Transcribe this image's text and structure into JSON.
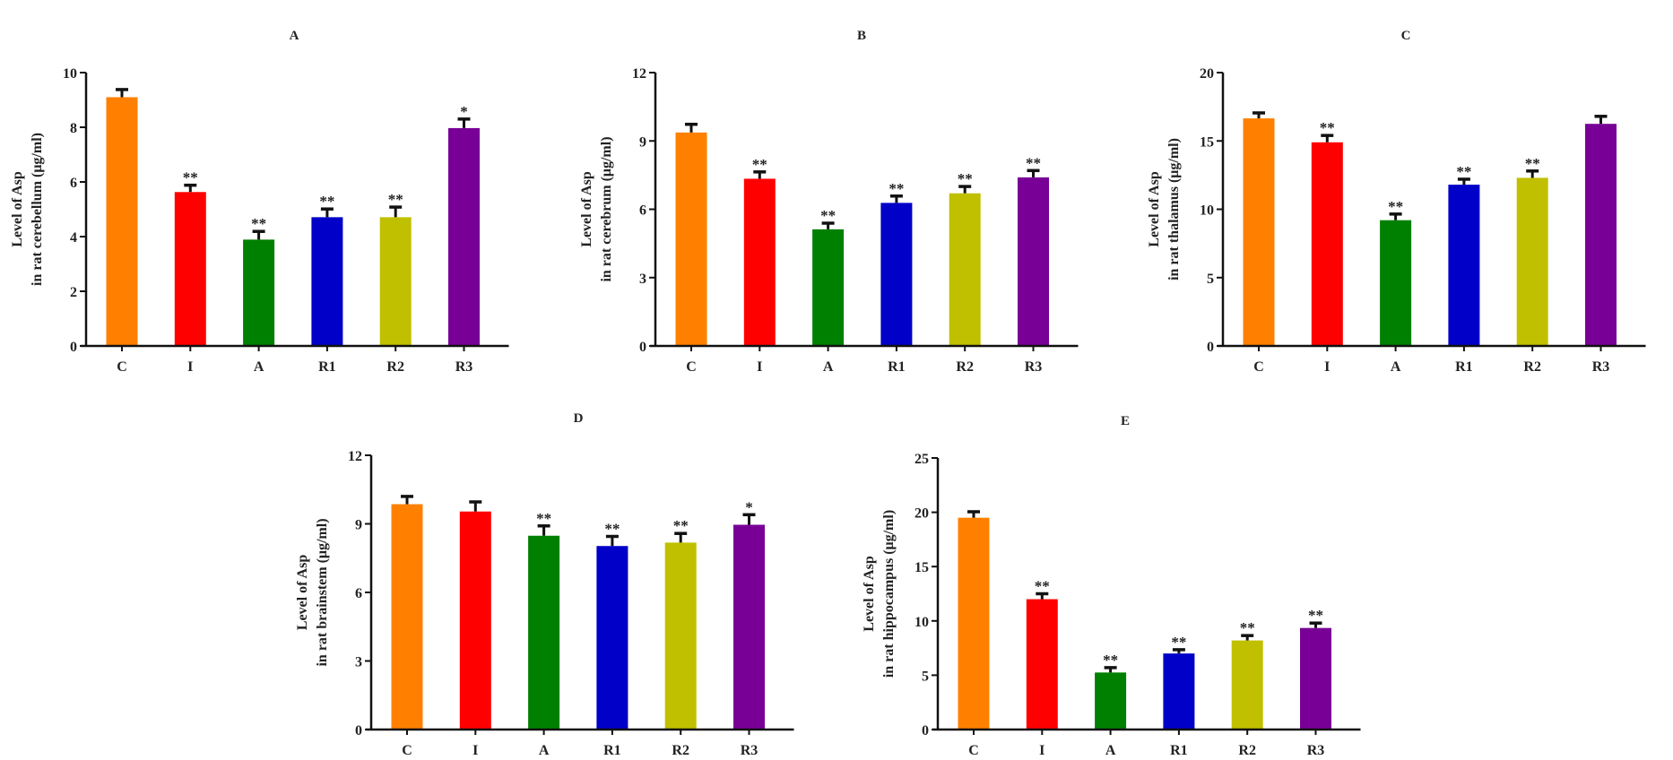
{
  "chart_data": [
    {
      "type": "bar",
      "title": "A",
      "ylabel": [
        "Level of Asp",
        "in rat cerebellum (μg/ml)"
      ],
      "categories": [
        "C",
        "I",
        "A",
        "R1",
        "R2",
        "R3"
      ],
      "values": [
        9.1,
        5.63,
        3.89,
        4.71,
        4.71,
        7.97
      ],
      "errors": [
        0.28,
        0.25,
        0.3,
        0.3,
        0.37,
        0.33
      ],
      "significance": [
        "",
        "**",
        "**",
        "**",
        "**",
        "*"
      ],
      "ylim": [
        0,
        10
      ],
      "yticks": [
        0,
        2,
        4,
        6,
        8,
        10
      ]
    },
    {
      "type": "bar",
      "title": "B",
      "ylabel": [
        "Level of Asp",
        "in rat cerebrum (μg/ml)"
      ],
      "categories": [
        "C",
        "I",
        "A",
        "R1",
        "R2",
        "R3"
      ],
      "values": [
        9.37,
        7.34,
        5.12,
        6.28,
        6.7,
        7.4
      ],
      "errors": [
        0.36,
        0.3,
        0.27,
        0.3,
        0.3,
        0.3
      ],
      "significance": [
        "",
        "**",
        "**",
        "**",
        "**",
        "**"
      ],
      "ylim": [
        0,
        12
      ],
      "yticks": [
        0,
        3,
        6,
        9,
        12
      ]
    },
    {
      "type": "bar",
      "title": "C",
      "ylabel": [
        "Level of Asp",
        "in rat thalamus (μg/ml)"
      ],
      "categories": [
        "C",
        "I",
        "A",
        "R1",
        "R2",
        "R3"
      ],
      "values": [
        16.65,
        14.9,
        9.2,
        11.8,
        12.3,
        16.25
      ],
      "errors": [
        0.4,
        0.5,
        0.45,
        0.4,
        0.5,
        0.55
      ],
      "significance": [
        "",
        "**",
        "**",
        "**",
        "**",
        ""
      ],
      "ylim": [
        0,
        20
      ],
      "yticks": [
        0,
        5,
        10,
        15,
        20
      ]
    },
    {
      "type": "bar",
      "title": "D",
      "ylabel": [
        "Level of Asp",
        "in rat brainstem (μg/ml)"
      ],
      "categories": [
        "C",
        "I",
        "A",
        "R1",
        "R2",
        "R3"
      ],
      "values": [
        9.86,
        9.54,
        8.48,
        8.03,
        8.18,
        8.96
      ],
      "errors": [
        0.34,
        0.42,
        0.43,
        0.42,
        0.4,
        0.44
      ],
      "significance": [
        "",
        "",
        "**",
        "**",
        "**",
        "*"
      ],
      "ylim": [
        0,
        12
      ],
      "yticks": [
        0,
        3,
        6,
        9,
        12
      ]
    },
    {
      "type": "bar",
      "title": "E",
      "ylabel": [
        "Level of Asp",
        "in rat hippocampus (μg/ml)"
      ],
      "categories": [
        "C",
        "I",
        "A",
        "R1",
        "R2",
        "R3"
      ],
      "values": [
        19.5,
        12.0,
        5.25,
        7.0,
        8.2,
        9.35
      ],
      "errors": [
        0.55,
        0.5,
        0.45,
        0.35,
        0.45,
        0.45
      ],
      "significance": [
        "",
        "**",
        "**",
        "**",
        "**",
        "**"
      ],
      "ylim": [
        0,
        25
      ],
      "yticks": [
        0,
        5,
        10,
        15,
        20,
        25
      ]
    }
  ],
  "colors": [
    "#ff8000",
    "#ff0000",
    "#008000",
    "#0000c8",
    "#c0c000",
    "#780096"
  ]
}
